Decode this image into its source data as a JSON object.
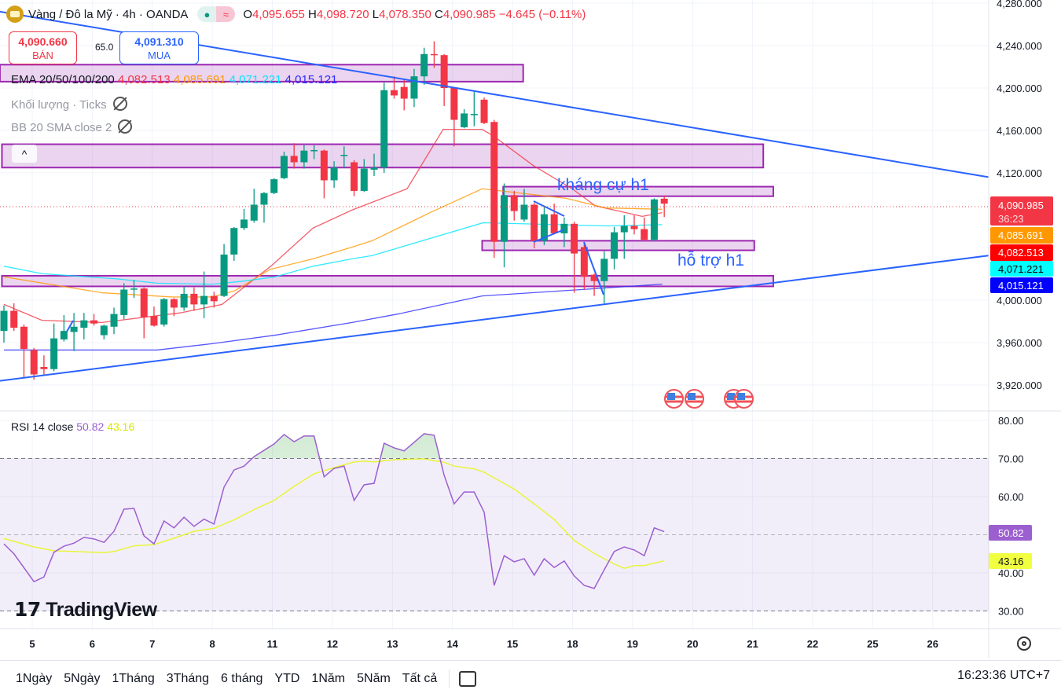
{
  "header": {
    "symbol": "Vàng / Đô la Mỹ · 4h · OANDA",
    "market_status_icon": "green-dot",
    "delay_icon": "≈",
    "o_label": "O",
    "o_value": "4,095.655",
    "h_label": "H",
    "h_value": "4,098.720",
    "l_label": "L",
    "l_value": "4,078.350",
    "c_label": "C",
    "c_value": "4,090.985",
    "change": "−4.645 (−0.11%)"
  },
  "trade": {
    "sell_price": "4,090.660",
    "sell_label": "BÁN",
    "spread": "65.0",
    "buy_price": "4,091.310",
    "buy_label": "MUA"
  },
  "legend": {
    "ema_title": "EMA 20/50/100/200",
    "ema20": "4,082.513",
    "ema50": "4,085.691",
    "ema100": "4,071.221",
    "ema200": "4,015.121",
    "volume": "Khối lượng · Ticks",
    "bb": "BB 20 SMA close 2",
    "collapse_icon": "^"
  },
  "annotations": {
    "resistance": "kháng cự h1",
    "support": "hỗ trợ h1"
  },
  "price_labels": {
    "last": "4,090.985",
    "countdown": "36:23",
    "ema50": "4,085.691",
    "ema20": "4,082.513",
    "ema100": "4,071.221",
    "ema200": "4,015.121"
  },
  "rsi": {
    "title": "RSI 14 close",
    "value": "50.82",
    "ma_value": "43.16"
  },
  "logo_text": "TradingView",
  "toolbar": {
    "ranges": [
      "1Ngày",
      "5Ngày",
      "1Tháng",
      "3Tháng",
      "6 tháng",
      "YTD",
      "1Năm",
      "5Năm",
      "Tất cả"
    ],
    "clock": "16:23:36 UTC+7"
  },
  "colors": {
    "up": "#089981",
    "down": "#f23645",
    "ema20": "#f23645",
    "ema50": "#ff9800",
    "ema100": "#00e5ff",
    "ema200": "#2a2aff",
    "trend": "#2962ff",
    "zone": "#9c27b0",
    "rsi": "#9c5fd0",
    "rsi_ma": "#e8f53a"
  },
  "chart_data": {
    "type": "candlestick",
    "title": "Vàng / Đô la Mỹ · 4h · OANDA",
    "ylim": [
      3900,
      4285
    ],
    "price_ticks": [
      "4,280.000",
      "4,240.000",
      "4,200.000",
      "4,160.000",
      "4,120.000",
      "4,000.000",
      "3,960.000",
      "3,920.000"
    ],
    "price_tick_values": [
      4280,
      4240,
      4200,
      4160,
      4120,
      4000,
      3960,
      3920
    ],
    "x_ticks": [
      "5",
      "6",
      "7",
      "8",
      "11",
      "12",
      "13",
      "14",
      "15",
      "18",
      "19",
      "20",
      "21",
      "22",
      "25",
      "26"
    ],
    "x_tick_first_bar": 2.83,
    "x_tick_step_bars": 6,
    "candles": [
      [
        3971,
        3995,
        3960,
        3990
      ],
      [
        3990,
        3997,
        3971,
        3974
      ],
      [
        3975,
        3977,
        3927,
        3954
      ],
      [
        3953,
        3955,
        3925,
        3930
      ],
      [
        3937,
        3948,
        3929,
        3935
      ],
      [
        3935,
        3978,
        3933,
        3964
      ],
      [
        3963,
        3986,
        3961,
        3971
      ],
      [
        3970,
        3988,
        3952,
        3975
      ],
      [
        3974,
        3988,
        3963,
        3981
      ],
      [
        3981,
        3987,
        3976,
        3978
      ],
      [
        3967,
        3977,
        3963,
        3976
      ],
      [
        3975,
        3993,
        3968,
        3987
      ],
      [
        3986,
        4016,
        3982,
        4010
      ],
      [
        4010,
        4019,
        4002,
        4011
      ],
      [
        4011,
        4012,
        3964,
        3984
      ],
      [
        3985,
        3994,
        3975,
        3976
      ],
      [
        3977,
        4002,
        3975,
        4001
      ],
      [
        4001,
        4002,
        3985,
        3993
      ],
      [
        3993,
        4013,
        3990,
        4006
      ],
      [
        4006,
        4012,
        3990,
        3996
      ],
      [
        3996,
        4027,
        3983,
        4004
      ],
      [
        4004,
        4008,
        3993,
        3999
      ],
      [
        4004,
        4053,
        4003,
        4043
      ],
      [
        4043,
        4069,
        4037,
        4068
      ],
      [
        4068,
        4086,
        4066,
        4076
      ],
      [
        4075,
        4105,
        4073,
        4090
      ],
      [
        4090,
        4102,
        4073,
        4101
      ],
      [
        4101,
        4115,
        4100,
        4114
      ],
      [
        4115,
        4140,
        4114,
        4136
      ],
      [
        4136,
        4148,
        4124,
        4130
      ],
      [
        4130,
        4146,
        4124,
        4141
      ],
      [
        4141,
        4146,
        4133,
        4141.5
      ],
      [
        4141,
        4142,
        4096,
        4113
      ],
      [
        4113,
        4131,
        4106,
        4125
      ],
      [
        4136,
        4145,
        4125,
        4137
      ],
      [
        4130,
        4132,
        4098,
        4103
      ],
      [
        4103,
        4133,
        4102,
        4124
      ],
      [
        4123,
        4138,
        4117,
        4125
      ],
      [
        4125,
        4205,
        4120,
        4198
      ],
      [
        4198,
        4211,
        4190,
        4193
      ],
      [
        4201,
        4208,
        4179,
        4190
      ],
      [
        4190,
        4218,
        4182,
        4211
      ],
      [
        4211,
        4238,
        4203,
        4232
      ],
      [
        4232,
        4244,
        4219,
        4231
      ],
      [
        4231,
        4232,
        4183,
        4200
      ],
      [
        4200,
        4201,
        4145,
        4170
      ],
      [
        4163,
        4180,
        4162,
        4176
      ],
      [
        4175,
        4197,
        4164,
        4175.5
      ],
      [
        4189,
        4191,
        4166,
        4167
      ],
      [
        4168,
        4170,
        4040,
        4055
      ],
      [
        4055,
        4110,
        4031,
        4099
      ],
      [
        4099,
        4103,
        4075,
        4084
      ],
      [
        4076,
        4105,
        4074,
        4090
      ],
      [
        4090,
        4092,
        4049,
        4056
      ],
      [
        4056,
        4089,
        4052,
        4081
      ],
      [
        4081,
        4091,
        4062,
        4063
      ],
      [
        4063,
        4078,
        4050,
        4072
      ],
      [
        4072,
        4074,
        4007,
        4044
      ],
      [
        4050,
        4054,
        4010,
        4022
      ],
      [
        4024,
        4025,
        4004,
        4018
      ],
      [
        4018,
        4046,
        3997,
        4039
      ],
      [
        4039,
        4069,
        4029,
        4064
      ],
      [
        4064,
        4080,
        4039,
        4070
      ],
      [
        4070,
        4080,
        4062,
        4067
      ],
      [
        4067,
        4078,
        4056,
        4057
      ],
      [
        4057,
        4096,
        4056,
        4095
      ],
      [
        4095.655,
        4098.72,
        4078.35,
        4090.985
      ]
    ],
    "ema": {
      "ema20": [
        [
          0,
          3996
        ],
        [
          3.8,
          3981
        ],
        [
          9.8,
          3979
        ],
        [
          17.6,
          3988
        ],
        [
          21.8,
          3996
        ],
        [
          26.8,
          4033
        ],
        [
          30.9,
          4068
        ],
        [
          34.8,
          4085
        ],
        [
          40.3,
          4105
        ],
        [
          43.9,
          4161
        ],
        [
          47.8,
          4161
        ],
        [
          48.9,
          4155
        ],
        [
          52.9,
          4127
        ],
        [
          56.8,
          4105
        ],
        [
          59.1,
          4089
        ],
        [
          63.8,
          4079
        ],
        [
          65.8,
          4082.5
        ]
      ],
      "ema50": [
        [
          0,
          4022
        ],
        [
          9.8,
          4007
        ],
        [
          16.8,
          4003
        ],
        [
          20.8,
          4003
        ],
        [
          23.1,
          4009
        ],
        [
          26.6,
          4029
        ],
        [
          30.9,
          4039
        ],
        [
          34.8,
          4050
        ],
        [
          36.8,
          4056
        ],
        [
          42.7,
          4083
        ],
        [
          47.8,
          4105
        ],
        [
          56.2,
          4096
        ],
        [
          60.1,
          4087
        ],
        [
          65.8,
          4085.7
        ]
      ],
      "ema100": [
        [
          0,
          4032
        ],
        [
          3.8,
          4025
        ],
        [
          11.4,
          4020
        ],
        [
          15.3,
          4016
        ],
        [
          20.8,
          4015
        ],
        [
          24,
          4018
        ],
        [
          27.1,
          4022
        ],
        [
          30.9,
          4032
        ],
        [
          34.8,
          4039
        ],
        [
          36.8,
          4042
        ],
        [
          47.9,
          4073
        ],
        [
          60.3,
          4070
        ],
        [
          65.8,
          4071.2
        ]
      ],
      "ema200": [
        [
          0,
          3953
        ],
        [
          15.3,
          3953
        ],
        [
          20.8,
          3959
        ],
        [
          27.1,
          3967
        ],
        [
          34.8,
          3979
        ],
        [
          39.4,
          3987
        ],
        [
          47.8,
          4004
        ],
        [
          57.7,
          4010
        ],
        [
          65.8,
          4015.1
        ]
      ]
    },
    "trendlines": [
      {
        "name": "descending-resistance",
        "from": [
          -0.4,
          4272
        ],
        "to": [
          98.4,
          4116
        ]
      },
      {
        "name": "ascending-support",
        "from": [
          -0.4,
          3924
        ],
        "to": [
          98.4,
          4042
        ]
      }
    ],
    "zones": [
      {
        "from_bar": -0.4,
        "to_bar": 51.9,
        "top": 4222,
        "bottom": 4206
      },
      {
        "from_bar": -0.2,
        "to_bar": 75.9,
        "top": 4147,
        "bottom": 4125
      },
      {
        "from_bar": 49.9,
        "to_bar": 76.9,
        "top": 4107,
        "bottom": 4098
      },
      {
        "from_bar": 47.8,
        "to_bar": 75.0,
        "top": 4056,
        "bottom": 4047
      },
      {
        "from_bar": -0.2,
        "to_bar": 76.9,
        "top": 4023,
        "bottom": 4013
      }
    ],
    "rsi": {
      "ylim": [
        25,
        82
      ],
      "ticks": [
        "80.00",
        "70.00",
        "60.00",
        "40.00",
        "30.00"
      ],
      "tick_values": [
        80,
        70,
        60,
        40,
        30
      ],
      "levels": [
        70,
        50,
        30
      ],
      "values": [
        [
          0,
          47.6
        ],
        [
          1,
          45.0
        ],
        [
          3,
          37.7
        ],
        [
          4,
          38.9
        ],
        [
          5,
          45.4
        ],
        [
          6,
          47.0
        ],
        [
          7,
          47.8
        ],
        [
          8,
          49.3
        ],
        [
          9,
          48.9
        ],
        [
          10,
          48.0
        ],
        [
          11,
          50.9
        ],
        [
          12,
          56.7
        ],
        [
          13,
          56.9
        ],
        [
          14,
          49.7
        ],
        [
          15,
          47.6
        ],
        [
          16,
          53.6
        ],
        [
          17,
          51.8
        ],
        [
          18,
          54.6
        ],
        [
          19,
          52.2
        ],
        [
          20,
          54.1
        ],
        [
          21,
          52.8
        ],
        [
          22,
          62.5
        ],
        [
          23,
          67.0
        ],
        [
          24,
          68.0
        ],
        [
          25,
          70.5
        ],
        [
          27,
          73.8
        ],
        [
          28,
          76.3
        ],
        [
          29,
          74.4
        ],
        [
          30,
          75.9
        ],
        [
          31,
          75.9
        ],
        [
          32,
          65.2
        ],
        [
          33,
          67.4
        ],
        [
          34,
          68.0
        ],
        [
          35,
          59.0
        ],
        [
          36,
          63.1
        ],
        [
          37,
          63.5
        ],
        [
          38,
          74.0
        ],
        [
          39,
          72.8
        ],
        [
          40,
          72.0
        ],
        [
          42,
          76.5
        ],
        [
          43,
          76.1
        ],
        [
          44,
          65.6
        ],
        [
          45,
          58.1
        ],
        [
          46,
          61.2
        ],
        [
          47,
          61.2
        ],
        [
          48,
          55.9
        ],
        [
          49,
          36.7
        ],
        [
          50,
          44.5
        ],
        [
          51,
          42.9
        ],
        [
          52,
          43.7
        ],
        [
          53,
          39.4
        ],
        [
          54,
          43.7
        ],
        [
          55,
          41.4
        ],
        [
          56,
          43.1
        ],
        [
          57,
          39.2
        ],
        [
          58,
          36.7
        ],
        [
          59,
          35.9
        ],
        [
          60,
          40.8
        ],
        [
          61,
          45.6
        ],
        [
          62,
          46.8
        ],
        [
          63,
          46.0
        ],
        [
          64,
          44.5
        ],
        [
          65,
          51.8
        ],
        [
          66,
          50.82
        ]
      ],
      "ma": [
        [
          0,
          49
        ],
        [
          3,
          46.8
        ],
        [
          5,
          45.8
        ],
        [
          7,
          45.6
        ],
        [
          10,
          45.3
        ],
        [
          11,
          45.6
        ],
        [
          13,
          47.1
        ],
        [
          15,
          47.4
        ],
        [
          17,
          49.1
        ],
        [
          19,
          50.9
        ],
        [
          21,
          51.7
        ],
        [
          23,
          53.9
        ],
        [
          25,
          56.6
        ],
        [
          27,
          59.0
        ],
        [
          29,
          62.7
        ],
        [
          31,
          66.0
        ],
        [
          33,
          67.6
        ],
        [
          35,
          69.1
        ],
        [
          36,
          69.3
        ],
        [
          37,
          69.1
        ],
        [
          39,
          69.7
        ],
        [
          42,
          69.9
        ],
        [
          44,
          69.0
        ],
        [
          45,
          68.0
        ],
        [
          47,
          67.3
        ],
        [
          48,
          66.4
        ],
        [
          49,
          64.9
        ],
        [
          51,
          62.0
        ],
        [
          53,
          58.1
        ],
        [
          55,
          54.0
        ],
        [
          57,
          48.5
        ],
        [
          59,
          45.1
        ],
        [
          61,
          42.3
        ],
        [
          62,
          41.2
        ],
        [
          63,
          41.9
        ],
        [
          64,
          41.9
        ],
        [
          66,
          43.16
        ]
      ]
    }
  }
}
